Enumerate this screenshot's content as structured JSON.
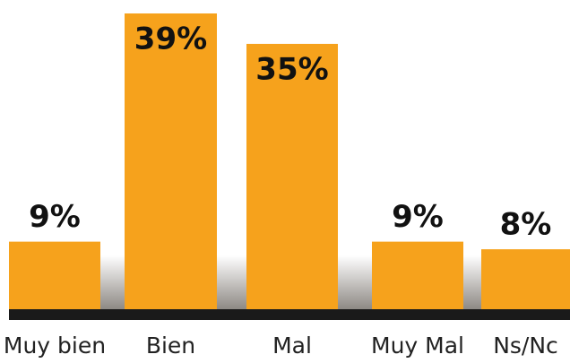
{
  "chart_data": {
    "type": "bar",
    "categories": [
      "Muy bien",
      "Bien",
      "Mal",
      "Muy Mal",
      "Ns/Nc"
    ],
    "values": [
      9,
      39,
      35,
      9,
      8
    ],
    "value_labels": [
      "9%",
      "39%",
      "35%",
      "9%",
      "8%"
    ],
    "color": "#f6a21c"
  }
}
